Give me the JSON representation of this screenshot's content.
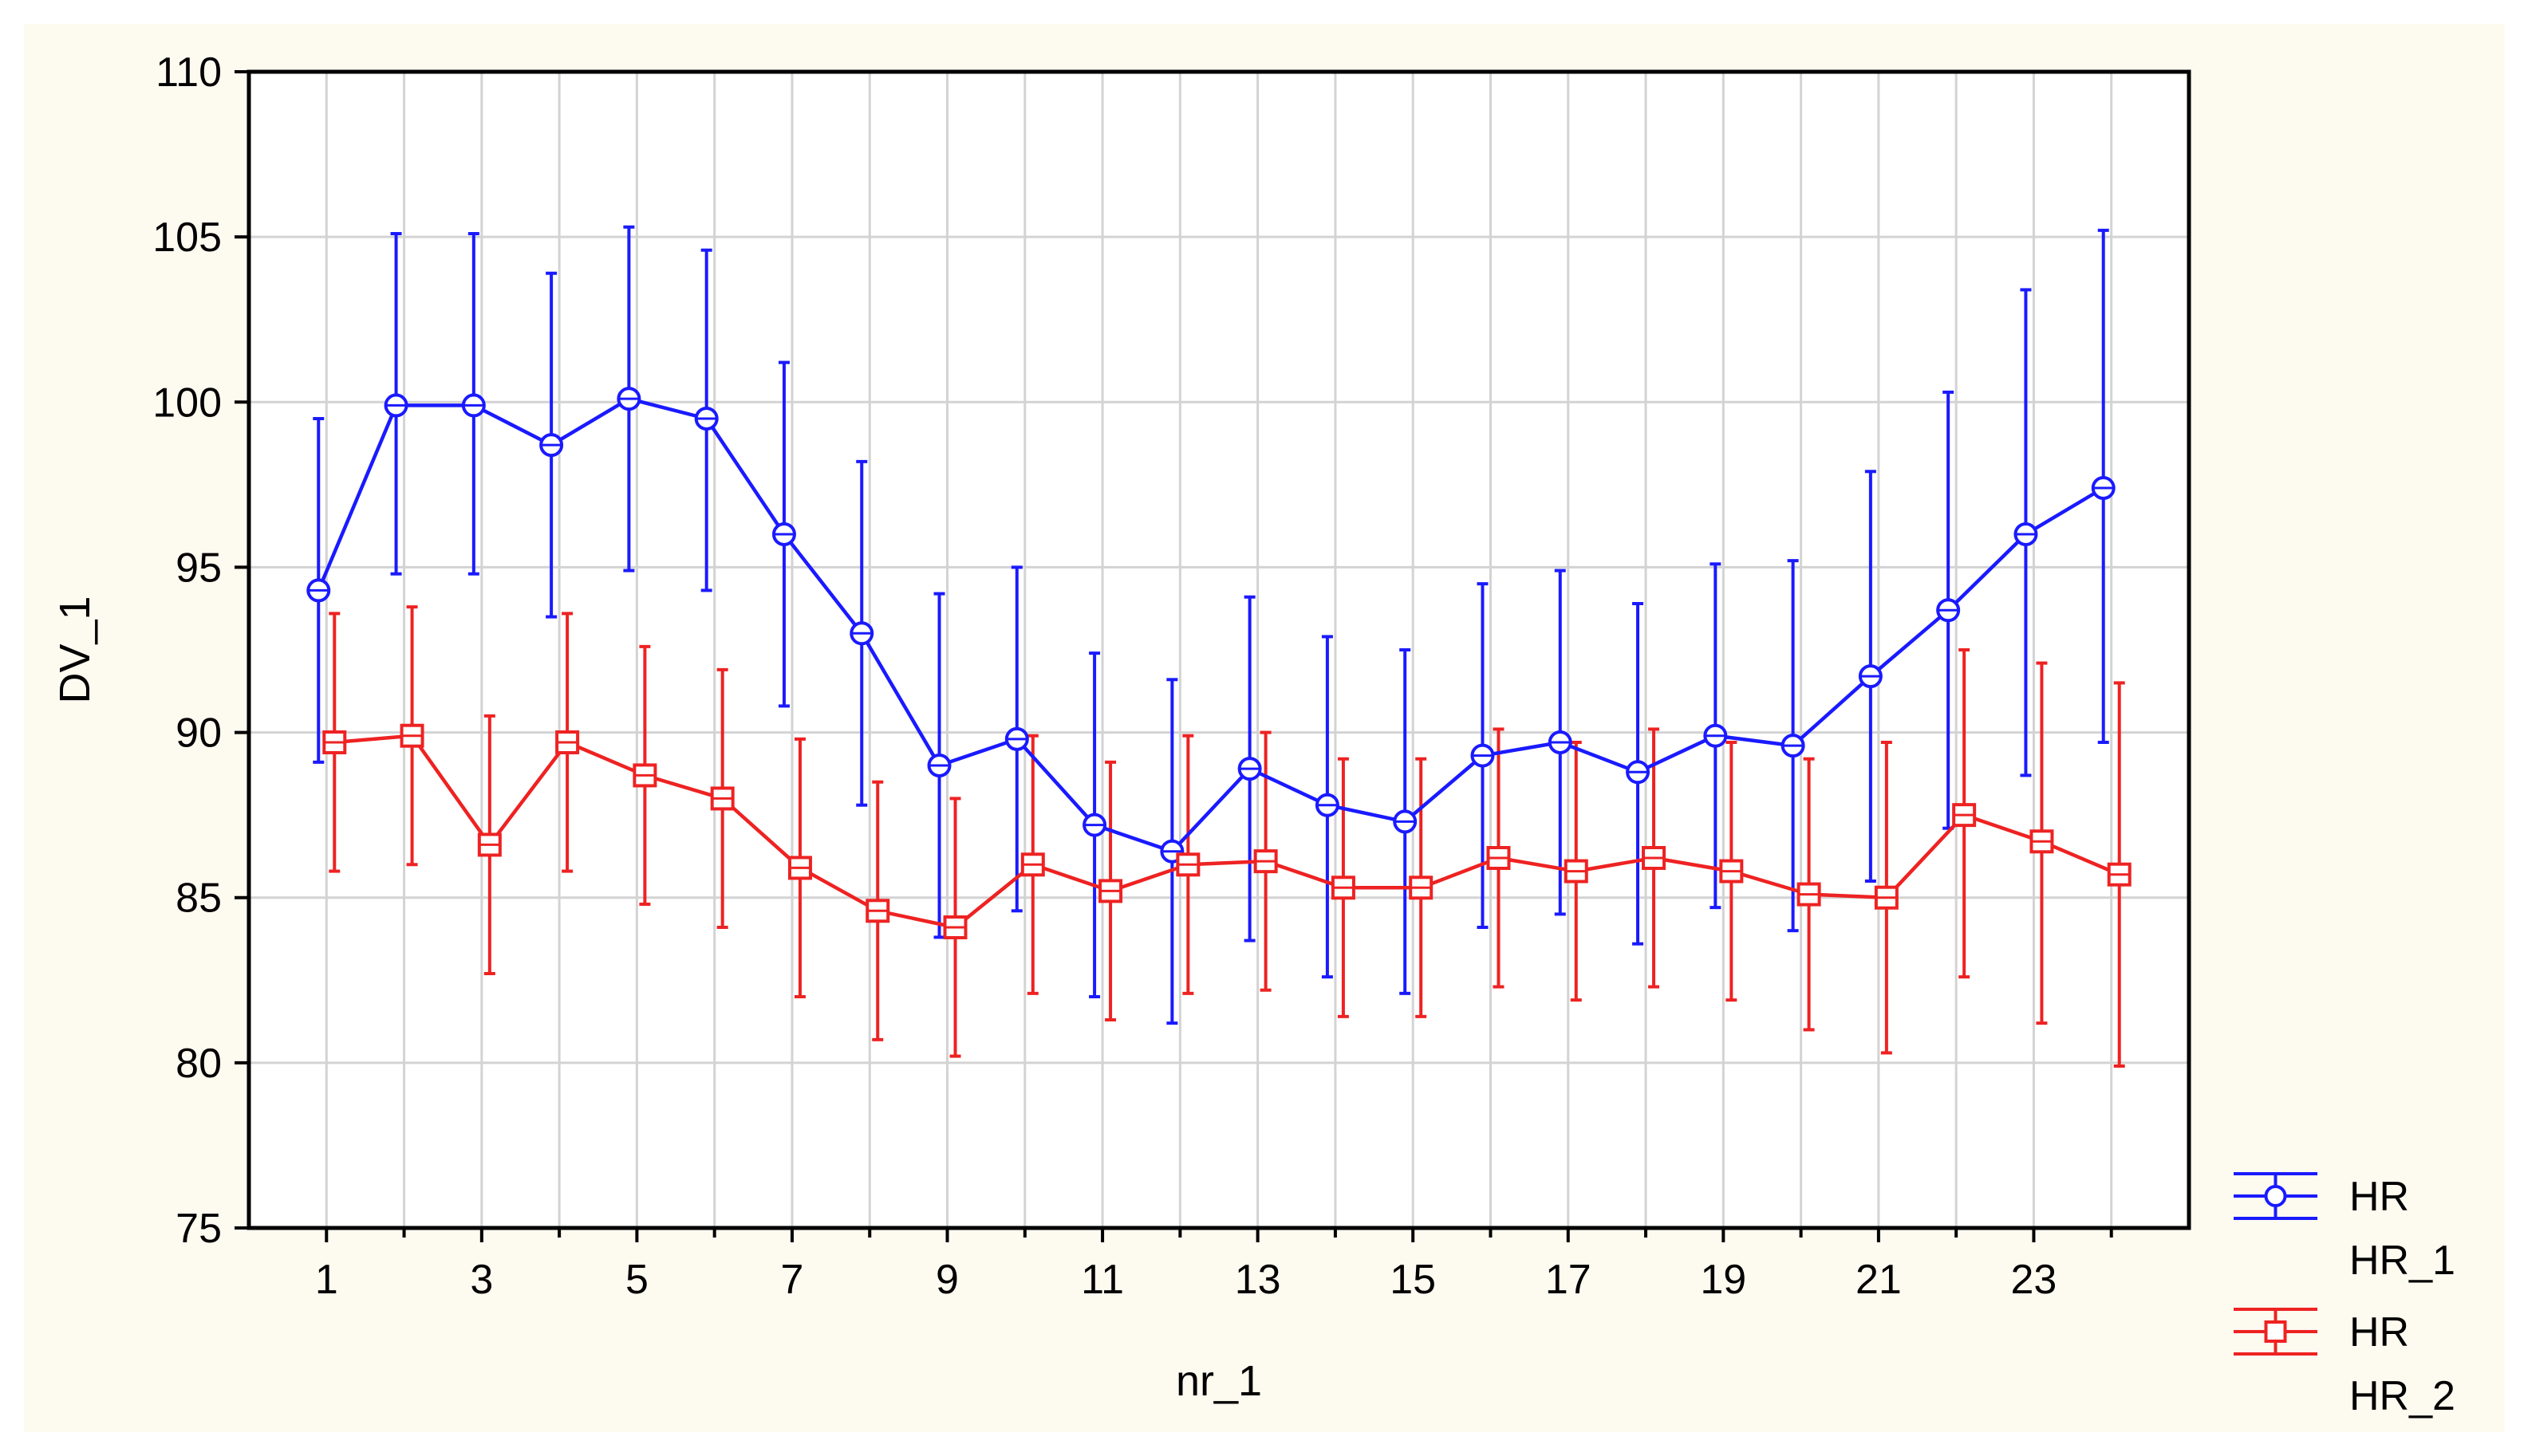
{
  "chart_data": {
    "type": "line",
    "title": "",
    "xlabel": "nr_1",
    "ylabel": "DV_1",
    "xlim": [
      0,
      25
    ],
    "ylim": [
      75,
      110
    ],
    "x_ticks": [
      1,
      3,
      5,
      7,
      9,
      11,
      13,
      15,
      17,
      19,
      21,
      23
    ],
    "y_ticks": [
      75,
      80,
      85,
      90,
      95,
      100,
      105,
      110
    ],
    "grid": true,
    "legend_position": "bottom-right",
    "error_bars": true,
    "x": [
      1,
      2,
      3,
      4,
      5,
      6,
      7,
      8,
      9,
      10,
      11,
      12,
      13,
      14,
      15,
      16,
      17,
      18,
      19,
      20,
      21,
      22,
      23,
      24
    ],
    "series": [
      {
        "name": "HR HR_1",
        "legend_lines": [
          "HR",
          "HR_1"
        ],
        "color": "#1a1aff",
        "marker": "circle",
        "values": [
          94.3,
          99.9,
          99.9,
          98.7,
          100.1,
          99.5,
          96.0,
          93.0,
          89.0,
          89.8,
          87.2,
          86.4,
          88.9,
          87.8,
          87.3,
          89.3,
          89.7,
          88.8,
          89.9,
          89.6,
          91.7,
          93.7,
          96.0,
          97.4
        ],
        "error_upper": [
          99.5,
          105.1,
          105.1,
          103.9,
          105.3,
          104.6,
          101.2,
          98.2,
          94.2,
          95.0,
          92.4,
          91.6,
          94.1,
          92.9,
          92.5,
          94.5,
          94.9,
          93.9,
          95.1,
          95.2,
          97.9,
          100.3,
          103.4,
          105.2
        ],
        "error_lower": [
          89.1,
          94.8,
          94.8,
          93.5,
          94.9,
          94.3,
          90.8,
          87.8,
          83.8,
          84.6,
          82.0,
          81.2,
          83.7,
          82.6,
          82.1,
          84.1,
          84.5,
          83.6,
          84.7,
          84.0,
          85.5,
          87.1,
          88.7,
          89.7
        ]
      },
      {
        "name": "HR HR_2",
        "legend_lines": [
          "HR",
          "HR_2"
        ],
        "color": "#ee2222",
        "marker": "square",
        "values": [
          89.7,
          89.9,
          86.6,
          89.7,
          88.7,
          88.0,
          85.9,
          84.6,
          84.1,
          86.0,
          85.2,
          86.0,
          86.1,
          85.3,
          85.3,
          86.2,
          85.8,
          86.2,
          85.8,
          85.1,
          85.0,
          87.5,
          86.7,
          85.7
        ],
        "error_upper": [
          93.6,
          93.8,
          90.5,
          93.6,
          92.6,
          91.9,
          89.8,
          88.5,
          88.0,
          89.9,
          89.1,
          89.9,
          90.0,
          89.2,
          89.2,
          90.1,
          89.7,
          90.1,
          89.7,
          89.2,
          89.7,
          92.5,
          92.1,
          91.5
        ],
        "error_lower": [
          85.8,
          86.0,
          82.7,
          85.8,
          84.8,
          84.1,
          82.0,
          80.7,
          80.2,
          82.1,
          81.3,
          82.1,
          82.2,
          81.4,
          81.4,
          82.3,
          81.9,
          82.3,
          81.9,
          81.0,
          80.3,
          82.6,
          81.2,
          79.9
        ]
      }
    ]
  },
  "colors": {
    "figure_background": "#fdfaf0",
    "plot_background": "#ffffff",
    "grid": "#d3d3d3"
  }
}
